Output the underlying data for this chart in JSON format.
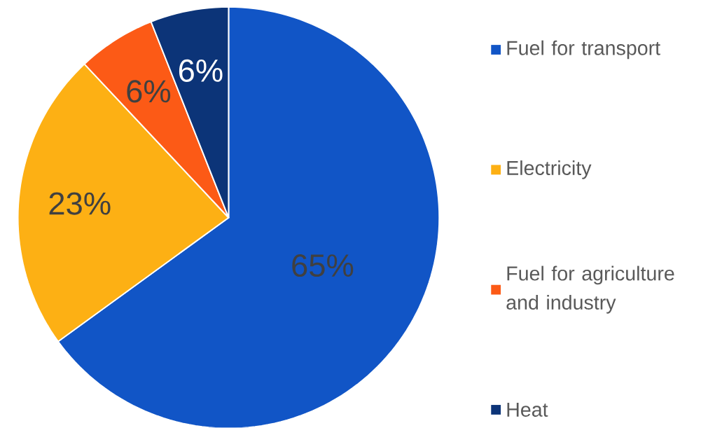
{
  "chart_data": {
    "type": "pie",
    "categories": [
      "Fuel for transport",
      "Electricity",
      "Fuel for agriculture and industry",
      "Heat"
    ],
    "values": [
      65,
      23,
      6,
      6
    ],
    "colors": [
      "#1155c6",
      "#fdb014",
      "#fc5a16",
      "#0c3478"
    ],
    "value_labels": [
      "65%",
      "23%",
      "6%",
      "6%"
    ],
    "legend": "right"
  }
}
